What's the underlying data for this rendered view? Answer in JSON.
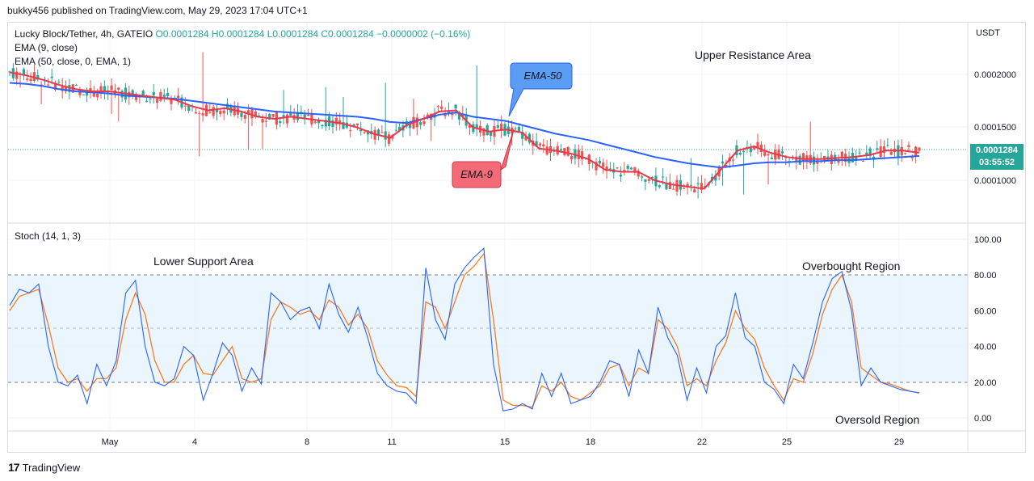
{
  "header": {
    "published": "bukky456 published on TradingView.com, May 29, 2023 17:04 UTC+1"
  },
  "legend": {
    "symbol": "Lucky Block/Tether, 4h, GATEIO",
    "ohlc": "O0.0001284  H0.0001284  L0.0001284  C0.0001284  −0.0000002 (−0.16%)",
    "ema9": "EMA (9, close)",
    "ema50": "EMA (50, close, 0, EMA, 1)",
    "stoch": "Stoch (14, 1, 3)"
  },
  "price_tag": {
    "value": "0.0001284",
    "countdown": "03:55:52"
  },
  "annotations": {
    "upper_resistance": "Upper Resistance Area",
    "lower_support": "Lower Support Area",
    "overbought": "Overbought Region",
    "oversold": "Oversold Region",
    "ema50_callout": "EMA-50",
    "ema9_callout": "EMA-9"
  },
  "footer": {
    "brand": "TradingView",
    "logo": "tradingview-logo-icon"
  },
  "colors": {
    "up": "#26a69a",
    "down": "#ef5350",
    "ema9": "#e8394a",
    "ema50": "#2962ff",
    "stochK": "#2962ff",
    "stochD": "#f57c22",
    "band": "#e3f2fd"
  },
  "chart_data": [
    {
      "type": "candlestick",
      "title": "Lucky Block/Tether, 4h, GATEIO",
      "x_ticks": [
        "May",
        "4",
        "8",
        "11",
        "15",
        "18",
        "22",
        "25",
        "29"
      ],
      "y_ticks": [
        "0.0002000",
        "0.0001500",
        "0.0001000"
      ],
      "last_price": 0.0001284,
      "series": [
        {
          "name": "EMA (9, close)",
          "values": [
            0.000202,
            0.000199,
            0.000195,
            0.00019,
            0.000186,
            0.000184,
            0.000184,
            0.000182,
            0.00018,
            0.000178,
            0.000176,
            0.00017,
            0.000166,
            0.000168,
            0.000165,
            0.00016,
            0.000158,
            0.00016,
            0.000158,
            0.000156,
            0.000154,
            0.00015,
            0.000144,
            0.00014,
            0.000152,
            0.000158,
            0.000165,
            0.000166,
            0.00015,
            0.000146,
            0.000148,
            0.000145,
            0.00013,
            0.000128,
            0.000125,
            0.00012,
            0.00011,
            0.000108,
            0.000108,
            0.0001,
            9.6e-05,
            9.4e-05,
            9.2e-05,
            0.00011,
            0.000128,
            0.000132,
            0.000126,
            0.000122,
            0.00012,
            0.00012,
            0.000121,
            0.000122,
            0.000124,
            0.000128,
            0.000128,
            0.000126
          ]
        },
        {
          "name": "EMA (50, close, 0, EMA, 1)",
          "values": [
            0.000192,
            0.000191,
            0.000189,
            0.000186,
            0.000184,
            0.000183,
            0.000182,
            0.00018,
            0.000179,
            0.000178,
            0.000177,
            0.000175,
            0.000173,
            0.000171,
            0.000169,
            0.000167,
            0.000165,
            0.000164,
            0.000163,
            0.000162,
            0.000161,
            0.00016,
            0.000158,
            0.000155,
            0.000154,
            0.000158,
            0.000162,
            0.000164,
            0.00016,
            0.000158,
            0.000156,
            0.000152,
            0.000148,
            0.000144,
            0.000141,
            0.000138,
            0.000134,
            0.00013,
            0.000126,
            0.000122,
            0.000119,
            0.000116,
            0.000114,
            0.000112,
            0.000114,
            0.000116,
            0.000117,
            0.000117,
            0.000118,
            0.000118,
            0.000119,
            0.000119,
            0.00012,
            0.000121,
            0.000122,
            0.000123
          ]
        }
      ]
    },
    {
      "type": "line",
      "title": "Stoch (14, 1, 3)",
      "y_ticks": [
        "100.00",
        "80.00",
        "60.00",
        "40.00",
        "20.00",
        "0.00"
      ],
      "ylim": [
        0,
        100
      ],
      "levels": [
        80,
        50,
        20
      ],
      "series": [
        {
          "name": "K",
          "values": [
            63,
            72,
            70,
            75,
            40,
            20,
            18,
            24,
            8,
            30,
            18,
            32,
            70,
            77,
            40,
            20,
            18,
            22,
            40,
            35,
            10,
            25,
            42,
            35,
            15,
            28,
            19,
            70,
            65,
            55,
            60,
            62,
            50,
            75,
            58,
            48,
            62,
            45,
            25,
            18,
            15,
            14,
            8,
            84,
            55,
            44,
            75,
            84,
            90,
            95,
            30,
            4,
            5,
            8,
            5,
            25,
            12,
            25,
            8,
            10,
            12,
            20,
            32,
            30,
            12,
            38,
            25,
            62,
            45,
            35,
            10,
            28,
            14,
            40,
            46,
            70,
            45,
            40,
            20,
            16,
            8,
            30,
            22,
            42,
            65,
            78,
            82,
            60,
            18,
            28,
            20,
            18,
            16,
            15,
            14
          ]
        },
        {
          "name": "D",
          "values": [
            60,
            68,
            70,
            72,
            52,
            28,
            20,
            22,
            15,
            22,
            22,
            28,
            55,
            70,
            58,
            32,
            20,
            20,
            30,
            35,
            25,
            24,
            32,
            40,
            22,
            20,
            22,
            55,
            65,
            62,
            58,
            60,
            55,
            66,
            62,
            52,
            58,
            50,
            32,
            24,
            18,
            17,
            12,
            65,
            62,
            50,
            65,
            80,
            85,
            92,
            55,
            10,
            7,
            7,
            6,
            18,
            15,
            20,
            12,
            10,
            14,
            18,
            28,
            30,
            18,
            28,
            25,
            55,
            50,
            40,
            18,
            22,
            18,
            32,
            42,
            60,
            50,
            44,
            28,
            18,
            10,
            22,
            20,
            36,
            58,
            72,
            80,
            65,
            28,
            24,
            20,
            19,
            17,
            15,
            14
          ]
        }
      ]
    }
  ]
}
